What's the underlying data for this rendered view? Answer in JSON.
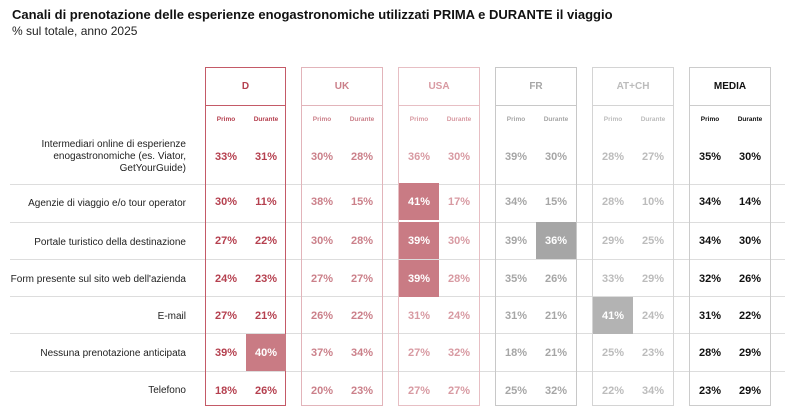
{
  "title": "Canali di prenotazione delle esperienze enogastronomiche utilizzati PRIMA e DURANTE il viaggio",
  "subtitle": "% sul totale, anno 2025",
  "chart_data": {
    "type": "table",
    "sub_labels": [
      "Primo",
      "Durante"
    ],
    "groups": [
      {
        "name": "D",
        "color": "#b5404f",
        "border": "#c45a67",
        "highlight": "#c97b84"
      },
      {
        "name": "UK",
        "color": "#cb808a",
        "border": "#e2b4ba",
        "highlight": "#d58f97"
      },
      {
        "name": "USA",
        "color": "#d89aa2",
        "border": "#e7bfc4",
        "highlight": "#c97b84"
      },
      {
        "name": "FR",
        "color": "#a6a6a6",
        "border": "#c8c8c8",
        "highlight": "#a6a6a6"
      },
      {
        "name": "AT+CH",
        "color": "#bcbcbc",
        "border": "#d4d4d4",
        "highlight": "#b3b3b3"
      },
      {
        "name": "MEDIA",
        "color": "#111111",
        "border": "#cccccc",
        "highlight": "#888888"
      }
    ],
    "rows": [
      {
        "label": "Intermediari online di esperienze enogastronomiche (es. Viator, GetYourGuide)",
        "values": [
          [
            33,
            31
          ],
          [
            30,
            28
          ],
          [
            36,
            30
          ],
          [
            39,
            30
          ],
          [
            28,
            27
          ],
          [
            35,
            30
          ]
        ]
      },
      {
        "label": "Agenzie di viaggio e/o tour operator",
        "values": [
          [
            30,
            11
          ],
          [
            38,
            15
          ],
          [
            41,
            17
          ],
          [
            34,
            15
          ],
          [
            28,
            10
          ],
          [
            34,
            14
          ]
        ]
      },
      {
        "label": "Portale turistico della destinazione",
        "values": [
          [
            27,
            22
          ],
          [
            30,
            28
          ],
          [
            39,
            30
          ],
          [
            39,
            36
          ],
          [
            29,
            25
          ],
          [
            34,
            30
          ]
        ]
      },
      {
        "label": "Form presente sul sito web dell'azienda",
        "values": [
          [
            24,
            23
          ],
          [
            27,
            27
          ],
          [
            39,
            28
          ],
          [
            35,
            26
          ],
          [
            33,
            29
          ],
          [
            32,
            26
          ]
        ]
      },
      {
        "label": "E-mail",
        "values": [
          [
            27,
            21
          ],
          [
            26,
            22
          ],
          [
            31,
            24
          ],
          [
            31,
            21
          ],
          [
            41,
            24
          ],
          [
            31,
            22
          ]
        ]
      },
      {
        "label": "Nessuna prenotazione anticipata",
        "values": [
          [
            39,
            40
          ],
          [
            37,
            34
          ],
          [
            27,
            32
          ],
          [
            18,
            21
          ],
          [
            25,
            23
          ],
          [
            28,
            29
          ]
        ]
      },
      {
        "label": "Telefono",
        "values": [
          [
            18,
            26
          ],
          [
            20,
            23
          ],
          [
            27,
            27
          ],
          [
            25,
            32
          ],
          [
            22,
            34
          ],
          [
            23,
            29
          ]
        ]
      }
    ],
    "highlighted_cells": [
      {
        "row": 5,
        "group": 0,
        "sub": 1
      },
      {
        "row": 1,
        "group": 2,
        "sub": 0
      },
      {
        "row": 2,
        "group": 2,
        "sub": 0
      },
      {
        "row": 3,
        "group": 2,
        "sub": 0
      },
      {
        "row": 2,
        "group": 3,
        "sub": 1
      },
      {
        "row": 4,
        "group": 4,
        "sub": 0
      }
    ]
  }
}
